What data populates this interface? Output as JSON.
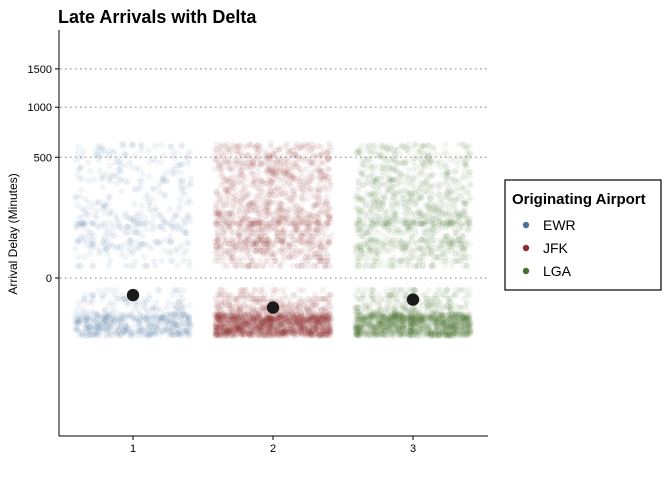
{
  "chart_data": {
    "type": "scatter",
    "title": "Late Arrivals with Delta",
    "xlabel": "",
    "ylabel": "Arrival Delay (Minutes)",
    "x_ticks": [
      "1",
      "2",
      "3"
    ],
    "y_ticks": [
      0,
      500,
      1000,
      1500
    ],
    "y_scale": "sqrt",
    "grid": "dotted horizontal lines at y ticks",
    "legend": {
      "title": "Originating Airport",
      "position": "right",
      "entries": [
        "EWR",
        "JFK",
        "LGA"
      ]
    },
    "colors": {
      "EWR": "#4a6f9c",
      "JFK": "#8b2e2e",
      "LGA": "#466e2e",
      "mean_point": "#1a1a1a"
    },
    "series": [
      {
        "name": "EWR",
        "x": 1,
        "mean_delay": -10,
        "approx_points": 900
      },
      {
        "name": "JFK",
        "x": 2,
        "mean_delay": -30,
        "approx_points": 2600
      },
      {
        "name": "LGA",
        "x": 3,
        "mean_delay": -16,
        "approx_points": 2200
      }
    ]
  }
}
